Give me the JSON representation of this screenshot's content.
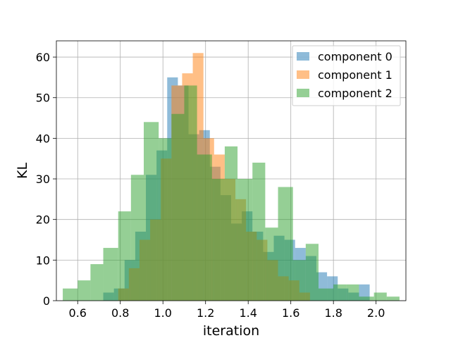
{
  "chart_data": {
    "type": "bar",
    "histogram": true,
    "xlabel": "iteration",
    "ylabel": "KL",
    "xlim": [
      0.5,
      2.14
    ],
    "ylim": [
      0,
      64
    ],
    "xticks": [
      0.6,
      0.8,
      1.0,
      1.2,
      1.4,
      1.6,
      1.8,
      2.0
    ],
    "xtick_labels": [
      "0.6",
      "0.8",
      "1.0",
      "1.2",
      "1.4",
      "1.6",
      "1.8",
      "2.0"
    ],
    "yticks": [
      0,
      10,
      20,
      30,
      40,
      50,
      60
    ],
    "ytick_labels": [
      "0",
      "10",
      "20",
      "30",
      "40",
      "50",
      "60"
    ],
    "grid": true,
    "legend_position": "top-right",
    "series": [
      {
        "name": "component 0",
        "color": "#1f77b4",
        "bins": [
          {
            "x0": 0.72,
            "x1": 0.77,
            "count": 2
          },
          {
            "x0": 0.77,
            "x1": 0.82,
            "count": 3
          },
          {
            "x0": 0.82,
            "x1": 0.87,
            "count": 10
          },
          {
            "x0": 0.87,
            "x1": 0.92,
            "count": 17
          },
          {
            "x0": 0.92,
            "x1": 0.97,
            "count": 31
          },
          {
            "x0": 0.97,
            "x1": 1.02,
            "count": 37
          },
          {
            "x0": 1.02,
            "x1": 1.07,
            "count": 55
          },
          {
            "x0": 1.07,
            "x1": 1.12,
            "count": 53
          },
          {
            "x0": 1.12,
            "x1": 1.17,
            "count": 41
          },
          {
            "x0": 1.17,
            "x1": 1.22,
            "count": 42
          },
          {
            "x0": 1.22,
            "x1": 1.27,
            "count": 33
          },
          {
            "x0": 1.27,
            "x1": 1.32,
            "count": 26
          },
          {
            "x0": 1.32,
            "x1": 1.37,
            "count": 19
          },
          {
            "x0": 1.37,
            "x1": 1.42,
            "count": 22
          },
          {
            "x0": 1.42,
            "x1": 1.47,
            "count": 17
          },
          {
            "x0": 1.47,
            "x1": 1.52,
            "count": 12
          },
          {
            "x0": 1.52,
            "x1": 1.57,
            "count": 16
          },
          {
            "x0": 1.57,
            "x1": 1.62,
            "count": 15
          },
          {
            "x0": 1.62,
            "x1": 1.67,
            "count": 13
          },
          {
            "x0": 1.67,
            "x1": 1.72,
            "count": 11
          },
          {
            "x0": 1.72,
            "x1": 1.77,
            "count": 7
          },
          {
            "x0": 1.77,
            "x1": 1.82,
            "count": 6
          },
          {
            "x0": 1.82,
            "x1": 1.87,
            "count": 3
          },
          {
            "x0": 1.87,
            "x1": 1.92,
            "count": 2
          },
          {
            "x0": 1.92,
            "x1": 1.97,
            "count": 4
          }
        ]
      },
      {
        "name": "component 1",
        "color": "#ff7f0e",
        "bins": [
          {
            "x0": 0.79,
            "x1": 0.84,
            "count": 3
          },
          {
            "x0": 0.84,
            "x1": 0.89,
            "count": 8
          },
          {
            "x0": 0.89,
            "x1": 0.94,
            "count": 15
          },
          {
            "x0": 0.94,
            "x1": 0.99,
            "count": 20
          },
          {
            "x0": 0.99,
            "x1": 1.04,
            "count": 35
          },
          {
            "x0": 1.04,
            "x1": 1.09,
            "count": 53
          },
          {
            "x0": 1.09,
            "x1": 1.14,
            "count": 56
          },
          {
            "x0": 1.14,
            "x1": 1.19,
            "count": 61
          },
          {
            "x0": 1.19,
            "x1": 1.24,
            "count": 40
          },
          {
            "x0": 1.24,
            "x1": 1.29,
            "count": 36
          },
          {
            "x0": 1.29,
            "x1": 1.34,
            "count": 30
          },
          {
            "x0": 1.34,
            "x1": 1.39,
            "count": 25
          },
          {
            "x0": 1.39,
            "x1": 1.44,
            "count": 17
          },
          {
            "x0": 1.44,
            "x1": 1.49,
            "count": 15
          },
          {
            "x0": 1.49,
            "x1": 1.54,
            "count": 10
          },
          {
            "x0": 1.54,
            "x1": 1.59,
            "count": 6
          },
          {
            "x0": 1.59,
            "x1": 1.64,
            "count": 5
          },
          {
            "x0": 1.64,
            "x1": 1.69,
            "count": 2
          }
        ]
      },
      {
        "name": "component 2",
        "color": "#2ca02c",
        "bins": [
          {
            "x0": 0.53,
            "x1": 0.6,
            "count": 3
          },
          {
            "x0": 0.6,
            "x1": 0.66,
            "count": 5
          },
          {
            "x0": 0.66,
            "x1": 0.72,
            "count": 9
          },
          {
            "x0": 0.72,
            "x1": 0.79,
            "count": 13
          },
          {
            "x0": 0.79,
            "x1": 0.85,
            "count": 22
          },
          {
            "x0": 0.85,
            "x1": 0.91,
            "count": 31
          },
          {
            "x0": 0.91,
            "x1": 0.98,
            "count": 44
          },
          {
            "x0": 0.98,
            "x1": 1.04,
            "count": 40
          },
          {
            "x0": 1.04,
            "x1": 1.1,
            "count": 46
          },
          {
            "x0": 1.1,
            "x1": 1.16,
            "count": 53
          },
          {
            "x0": 1.16,
            "x1": 1.23,
            "count": 36
          },
          {
            "x0": 1.23,
            "x1": 1.29,
            "count": 30
          },
          {
            "x0": 1.29,
            "x1": 1.35,
            "count": 38
          },
          {
            "x0": 1.35,
            "x1": 1.42,
            "count": 30
          },
          {
            "x0": 1.42,
            "x1": 1.48,
            "count": 34
          },
          {
            "x0": 1.48,
            "x1": 1.54,
            "count": 18
          },
          {
            "x0": 1.54,
            "x1": 1.61,
            "count": 28
          },
          {
            "x0": 1.61,
            "x1": 1.67,
            "count": 10
          },
          {
            "x0": 1.67,
            "x1": 1.73,
            "count": 14
          },
          {
            "x0": 1.73,
            "x1": 1.8,
            "count": 3
          },
          {
            "x0": 1.8,
            "x1": 1.86,
            "count": 4
          },
          {
            "x0": 1.86,
            "x1": 1.92,
            "count": 4
          },
          {
            "x0": 1.92,
            "x1": 1.99,
            "count": 1
          },
          {
            "x0": 1.99,
            "x1": 2.05,
            "count": 2
          },
          {
            "x0": 2.05,
            "x1": 2.11,
            "count": 1
          }
        ]
      }
    ]
  }
}
